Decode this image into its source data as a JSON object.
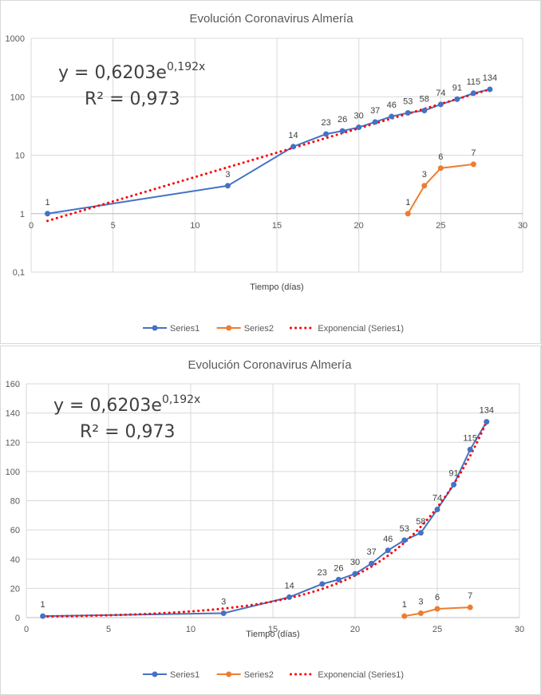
{
  "chart_data": [
    {
      "type": "line",
      "title": "Evolución Coronavirus Almería",
      "xlabel": "Tiempo (días)",
      "ylabel": "",
      "yscale": "log",
      "xlim": [
        0,
        30
      ],
      "ylim": [
        0.1,
        1000
      ],
      "xticks": [
        "0",
        "5",
        "10",
        "15",
        "20",
        "25",
        "30"
      ],
      "yticks": [
        "0,1",
        "1",
        "10",
        "100",
        "1000"
      ],
      "grid": true,
      "legend_position": "bottom",
      "trendline_equation": {
        "base": "y = 0,6203e",
        "exponent": "0,192x",
        "r2": "R² = 0,973"
      },
      "series": [
        {
          "name": "Series1",
          "color": "#4472C4",
          "x": [
            1,
            12,
            16,
            18,
            19,
            20,
            21,
            22,
            23,
            24,
            25,
            26,
            27,
            28
          ],
          "y": [
            1,
            3,
            14,
            23,
            26,
            30,
            37,
            46,
            53,
            58,
            74,
            91,
            115,
            134
          ],
          "labels": [
            "1",
            "3",
            "14",
            "23",
            "26",
            "30",
            "37",
            "46",
            "53",
            "58",
            "74",
            "91",
            "115",
            "134"
          ]
        },
        {
          "name": "Series2",
          "color": "#ED7D31",
          "x": [
            23,
            24,
            25,
            27
          ],
          "y": [
            1,
            3,
            6,
            7
          ],
          "labels": [
            "1",
            "3",
            "6",
            "7"
          ]
        },
        {
          "name": "Exponencial (Series1)",
          "color": "#FF0000",
          "style": "dotted",
          "trend": {
            "a": 0.6203,
            "b": 0.192,
            "xrange": [
              1,
              28
            ]
          }
        }
      ]
    },
    {
      "type": "line",
      "title": "Evolución Coronavirus Almería",
      "xlabel": "Tiempo (días)",
      "ylabel": "",
      "yscale": "linear",
      "xlim": [
        0,
        30
      ],
      "ylim": [
        0,
        160
      ],
      "xticks": [
        "0",
        "5",
        "10",
        "15",
        "20",
        "25",
        "30"
      ],
      "yticks": [
        "0",
        "20",
        "40",
        "60",
        "80",
        "100",
        "120",
        "140",
        "160"
      ],
      "grid": true,
      "legend_position": "bottom",
      "trendline_equation": {
        "base": "y = 0,6203e",
        "exponent": "0,192x",
        "r2": "R² = 0,973"
      },
      "series": [
        {
          "name": "Series1",
          "color": "#4472C4",
          "x": [
            1,
            12,
            16,
            18,
            19,
            20,
            21,
            22,
            23,
            24,
            25,
            26,
            27,
            28
          ],
          "y": [
            1,
            3,
            14,
            23,
            26,
            30,
            37,
            46,
            53,
            58,
            74,
            91,
            115,
            134
          ],
          "labels": [
            "1",
            "3",
            "14",
            "23",
            "26",
            "30",
            "37",
            "46",
            "53",
            "58",
            "74",
            "91",
            "115",
            "134"
          ]
        },
        {
          "name": "Series2",
          "color": "#ED7D31",
          "x": [
            23,
            24,
            25,
            27
          ],
          "y": [
            1,
            3,
            6,
            7
          ],
          "labels": [
            "1",
            "3",
            "6",
            "7"
          ]
        },
        {
          "name": "Exponencial (Series1)",
          "color": "#FF0000",
          "style": "dotted",
          "trend": {
            "a": 0.6203,
            "b": 0.192,
            "xrange": [
              1,
              28
            ]
          }
        }
      ]
    }
  ]
}
